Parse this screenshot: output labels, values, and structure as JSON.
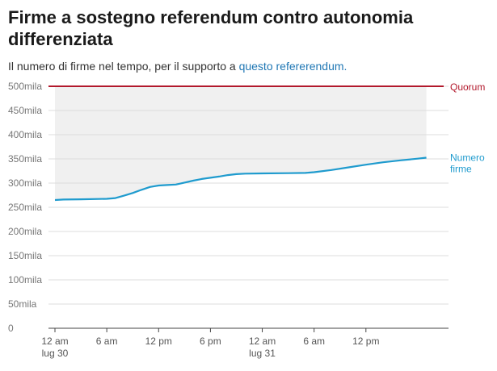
{
  "title": "Firme a sostegno referendum contro autonomia differenziata",
  "subtitle_text": "Il numero di firme nel tempo, per il supporto a ",
  "subtitle_link": "questo refererendum.",
  "colors": {
    "quorum_line": "#b2182b",
    "series_line": "#1f9bce",
    "shaded_area": "#f0f0f0",
    "grid": "#dddddd",
    "link": "#1f77b4"
  },
  "chart_data": {
    "type": "line",
    "ylim": [
      0,
      500000
    ],
    "y_ticks": [
      {
        "value": 0,
        "label": "0"
      },
      {
        "value": 50000,
        "label": "50mila"
      },
      {
        "value": 100000,
        "label": "100mila"
      },
      {
        "value": 150000,
        "label": "150mila"
      },
      {
        "value": 200000,
        "label": "200mila"
      },
      {
        "value": 250000,
        "label": "250mila"
      },
      {
        "value": 300000,
        "label": "300mila"
      },
      {
        "value": 350000,
        "label": "350mila"
      },
      {
        "value": 400000,
        "label": "400mila"
      },
      {
        "value": 450000,
        "label": "450mila"
      },
      {
        "value": 500000,
        "label": "500mila"
      }
    ],
    "xlim": [
      "2024-07-30T00:00",
      "2024-07-31T21:00"
    ],
    "x_ticks": [
      {
        "x": "2024-07-30T00:00",
        "label": "12 am",
        "sublabel": "lug 30"
      },
      {
        "x": "2024-07-30T06:00",
        "label": "6 am",
        "sublabel": ""
      },
      {
        "x": "2024-07-30T12:00",
        "label": "12 pm",
        "sublabel": ""
      },
      {
        "x": "2024-07-30T18:00",
        "label": "6 pm",
        "sublabel": ""
      },
      {
        "x": "2024-07-31T00:00",
        "label": "12 am",
        "sublabel": "lug 31"
      },
      {
        "x": "2024-07-31T06:00",
        "label": "6 am",
        "sublabel": ""
      },
      {
        "x": "2024-07-31T12:00",
        "label": "12 pm",
        "sublabel": ""
      }
    ],
    "series": [
      {
        "name": "Numero firme",
        "points": [
          {
            "x": "2024-07-30T00:00",
            "y": 265000
          },
          {
            "x": "2024-07-30T01:00",
            "y": 266000
          },
          {
            "x": "2024-07-30T03:00",
            "y": 266500
          },
          {
            "x": "2024-07-30T06:00",
            "y": 267500
          },
          {
            "x": "2024-07-30T07:00",
            "y": 269000
          },
          {
            "x": "2024-07-30T08:00",
            "y": 274000
          },
          {
            "x": "2024-07-30T09:00",
            "y": 279500
          },
          {
            "x": "2024-07-30T10:00",
            "y": 286000
          },
          {
            "x": "2024-07-30T11:00",
            "y": 292000
          },
          {
            "x": "2024-07-30T12:00",
            "y": 295000
          },
          {
            "x": "2024-07-30T13:00",
            "y": 296000
          },
          {
            "x": "2024-07-30T14:00",
            "y": 297000
          },
          {
            "x": "2024-07-30T15:00",
            "y": 301000
          },
          {
            "x": "2024-07-30T16:00",
            "y": 305000
          },
          {
            "x": "2024-07-30T17:00",
            "y": 308500
          },
          {
            "x": "2024-07-30T18:00",
            "y": 311000
          },
          {
            "x": "2024-07-30T19:00",
            "y": 313500
          },
          {
            "x": "2024-07-30T20:00",
            "y": 316500
          },
          {
            "x": "2024-07-30T21:00",
            "y": 318500
          },
          {
            "x": "2024-07-30T22:00",
            "y": 319500
          },
          {
            "x": "2024-07-31T00:00",
            "y": 320000
          },
          {
            "x": "2024-07-31T03:00",
            "y": 320500
          },
          {
            "x": "2024-07-31T05:00",
            "y": 321000
          },
          {
            "x": "2024-07-31T06:00",
            "y": 322500
          },
          {
            "x": "2024-07-31T08:00",
            "y": 327000
          },
          {
            "x": "2024-07-31T10:00",
            "y": 332500
          },
          {
            "x": "2024-07-31T12:00",
            "y": 338000
          },
          {
            "x": "2024-07-31T14:00",
            "y": 343000
          },
          {
            "x": "2024-07-31T16:00",
            "y": 347000
          },
          {
            "x": "2024-07-31T18:00",
            "y": 350500
          },
          {
            "x": "2024-07-31T19:00",
            "y": 352500
          }
        ]
      }
    ],
    "reference_lines": [
      {
        "name": "Quorum",
        "y": 500000
      }
    ],
    "annotations": [
      {
        "text": "Quorum",
        "target": "quorum"
      },
      {
        "text": "Numero firme",
        "target": "series"
      }
    ],
    "grid": true,
    "legend": "none"
  }
}
